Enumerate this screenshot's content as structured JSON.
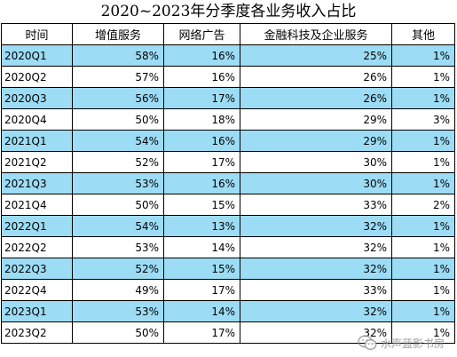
{
  "title": "2020~2023年分季度各业务收入占比",
  "table": {
    "headers": [
      "时间",
      "增值服务",
      "网络广告",
      "金融科技及企业服务",
      "其他"
    ],
    "rows": [
      [
        "2020Q1",
        "58%",
        "16%",
        "25%",
        "1%"
      ],
      [
        "2020Q2",
        "57%",
        "16%",
        "26%",
        "1%"
      ],
      [
        "2020Q3",
        "56%",
        "17%",
        "26%",
        "1%"
      ],
      [
        "2020Q4",
        "50%",
        "18%",
        "29%",
        "3%"
      ],
      [
        "2021Q1",
        "54%",
        "16%",
        "29%",
        "1%"
      ],
      [
        "2021Q2",
        "52%",
        "17%",
        "30%",
        "1%"
      ],
      [
        "2021Q3",
        "53%",
        "16%",
        "30%",
        "1%"
      ],
      [
        "2021Q4",
        "50%",
        "15%",
        "33%",
        "2%"
      ],
      [
        "2022Q1",
        "54%",
        "13%",
        "32%",
        "1%"
      ],
      [
        "2022Q2",
        "53%",
        "14%",
        "32%",
        "1%"
      ],
      [
        "2022Q3",
        "52%",
        "15%",
        "32%",
        "1%"
      ],
      [
        "2022Q4",
        "49%",
        "17%",
        "33%",
        "1%"
      ],
      [
        "2023Q1",
        "53%",
        "14%",
        "32%",
        "1%"
      ],
      [
        "2023Q2",
        "50%",
        "17%",
        "32%",
        "1%"
      ]
    ]
  },
  "watermark": {
    "icon": "wechat-icon",
    "text": "水声蓝影书房"
  },
  "colors": {
    "row_highlight": "#9ddcf5",
    "row_plain": "#ffffff",
    "border": "#000000"
  }
}
